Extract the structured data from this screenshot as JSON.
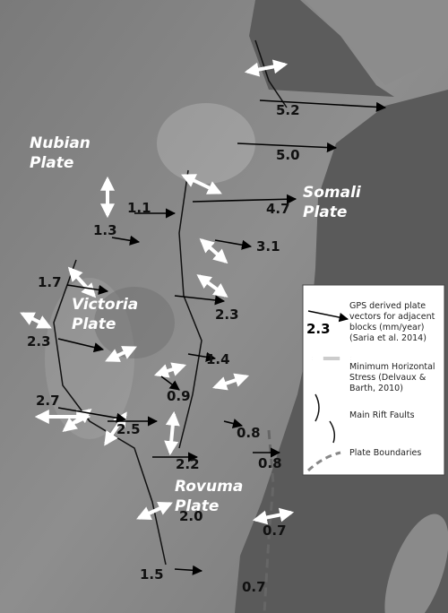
{
  "plates": [
    [
      "Nubian",
      "Plate"
    ],
    [
      "Somali",
      "Plate"
    ],
    [
      "Victoria",
      "Plate"
    ],
    [
      "Rovuma",
      "Plate"
    ]
  ],
  "vectors": [
    "5.2",
    "5.0",
    "4.7",
    "1.1",
    "1.3",
    "3.1",
    "1.7",
    "2.3",
    "2.3",
    "1.4",
    "2.7",
    "0.9",
    "2.5",
    "2.2",
    "0.8",
    "0.8",
    "2.0",
    "0.7",
    "1.5",
    "0.7"
  ],
  "legend": {
    "gps": {
      "sample": "2.3",
      "lines": [
        "GPS derived plate",
        "vectors for adjacent",
        "blocks (mm/year)",
        "(Saria et al. 2014)"
      ]
    },
    "stress": [
      "Minimum Horizontal",
      "Stress (Delvaux &",
      "Barth, 2010)"
    ],
    "faults": [
      "Main Rift Faults"
    ],
    "boundaries": [
      "Plate Boundaries"
    ]
  }
}
